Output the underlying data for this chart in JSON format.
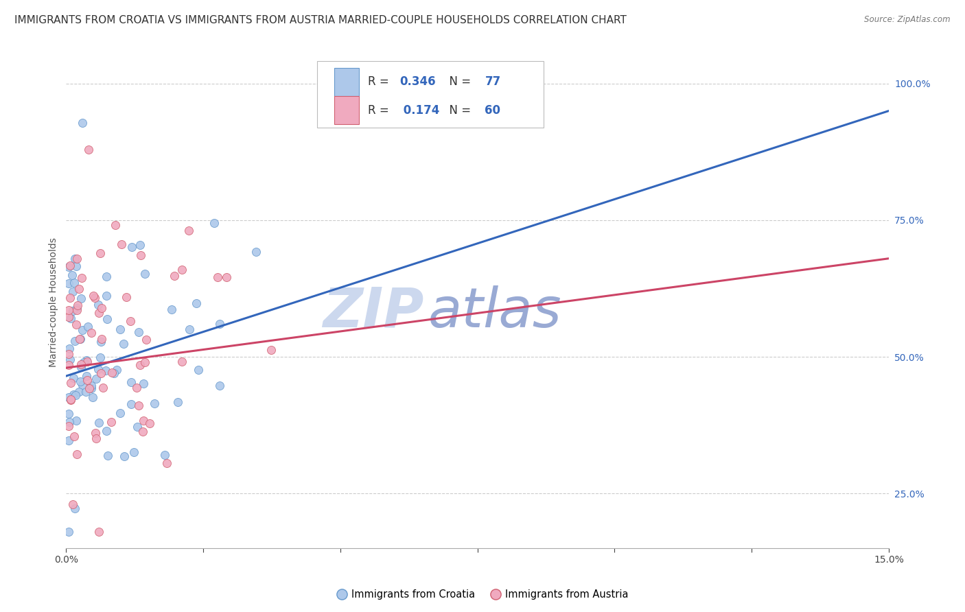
{
  "title": "IMMIGRANTS FROM CROATIA VS IMMIGRANTS FROM AUSTRIA MARRIED-COUPLE HOUSEHOLDS CORRELATION CHART",
  "source": "Source: ZipAtlas.com",
  "ylabel": "Married-couple Households",
  "xlim": [
    0.0,
    15.0
  ],
  "ylim": [
    15.0,
    105.0
  ],
  "x_ticks": [
    0.0,
    2.5,
    5.0,
    7.5,
    10.0,
    12.5,
    15.0
  ],
  "y_ticks_right": [
    25.0,
    50.0,
    75.0,
    100.0
  ],
  "y_tick_labels_right": [
    "25.0%",
    "50.0%",
    "75.0%",
    "100.0%"
  ],
  "grid_color": "#cccccc",
  "background_color": "#ffffff",
  "croatia_color": "#adc8ea",
  "austria_color": "#f0aabf",
  "croatia_edge_color": "#6699cc",
  "austria_edge_color": "#d06070",
  "croatia_line_color": "#3366bb",
  "austria_line_color": "#cc4466",
  "croatia_R": 0.346,
  "croatia_N": 77,
  "austria_R": 0.174,
  "austria_N": 60,
  "croatia_label": "Immigrants from Croatia",
  "austria_label": "Immigrants from Austria",
  "title_fontsize": 11,
  "axis_label_fontsize": 10,
  "tick_fontsize": 10,
  "legend_fontsize": 12,
  "legend_R_color": "#3366bb",
  "legend_N_color": "#3366bb",
  "watermark_zip_color": "#ccd8ee",
  "watermark_atlas_color": "#99aad4",
  "croatia_line_x0": 0.0,
  "croatia_line_y0": 46.5,
  "croatia_line_x1": 15.0,
  "croatia_line_y1": 95.0,
  "austria_line_x0": 0.0,
  "austria_line_y0": 48.0,
  "austria_line_x1": 15.0,
  "austria_line_y1": 68.0
}
